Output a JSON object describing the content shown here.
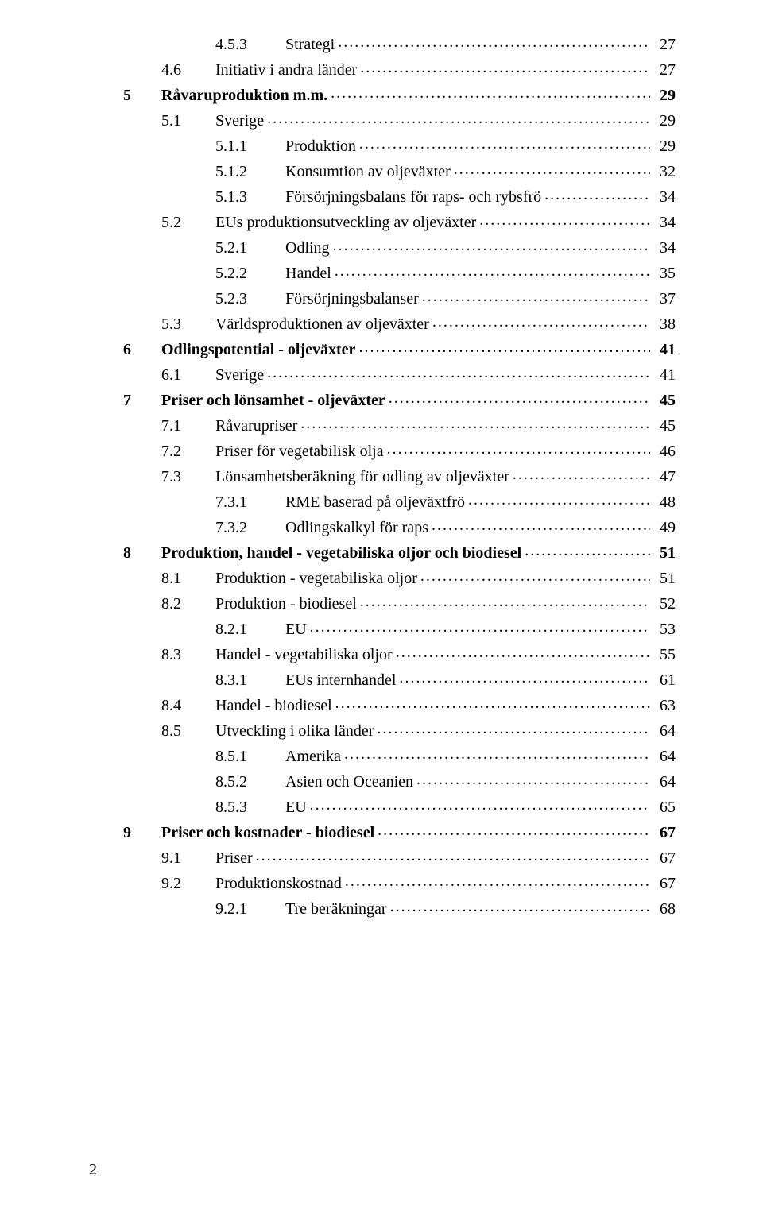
{
  "colors": {
    "background": "#ffffff",
    "text": "#000000"
  },
  "typography": {
    "font_family": "Times New Roman",
    "line_fontsize_pt": 15,
    "bold_levels": [
      "chapter"
    ]
  },
  "footer_page_number": "2",
  "toc": [
    {
      "level": 3,
      "bold": false,
      "num": "4.5.3",
      "title": "Strategi",
      "page": "27"
    },
    {
      "level": 2,
      "bold": false,
      "num": "4.6",
      "title": "Initiativ i andra länder",
      "page": "27"
    },
    {
      "level": 1,
      "bold": true,
      "num": "5",
      "title": "Råvaruproduktion m.m.",
      "page": "29"
    },
    {
      "level": 2,
      "bold": false,
      "num": "5.1",
      "title": "Sverige",
      "page": "29"
    },
    {
      "level": 3,
      "bold": false,
      "num": "5.1.1",
      "title": "Produktion",
      "page": "29"
    },
    {
      "level": 3,
      "bold": false,
      "num": "5.1.2",
      "title": "Konsumtion av oljeväxter",
      "page": "32"
    },
    {
      "level": 3,
      "bold": false,
      "num": "5.1.3",
      "title": "Försörjningsbalans för raps- och rybsfrö",
      "page": "34"
    },
    {
      "level": 2,
      "bold": false,
      "num": "5.2",
      "title": "EUs produktionsutveckling av oljeväxter",
      "page": "34"
    },
    {
      "level": 3,
      "bold": false,
      "num": "5.2.1",
      "title": "Odling",
      "page": "34"
    },
    {
      "level": 3,
      "bold": false,
      "num": "5.2.2",
      "title": "Handel",
      "page": "35"
    },
    {
      "level": 3,
      "bold": false,
      "num": "5.2.3",
      "title": "Försörjningsbalanser",
      "page": "37"
    },
    {
      "level": 2,
      "bold": false,
      "num": "5.3",
      "title": "Världsproduktionen av oljeväxter",
      "page": "38"
    },
    {
      "level": 1,
      "bold": true,
      "num": "6",
      "title": "Odlingspotential - oljeväxter",
      "page": "41"
    },
    {
      "level": 2,
      "bold": false,
      "num": "6.1",
      "title": "Sverige",
      "page": "41"
    },
    {
      "level": 1,
      "bold": true,
      "num": "7",
      "title": "Priser och lönsamhet - oljeväxter",
      "page": "45"
    },
    {
      "level": 2,
      "bold": false,
      "num": "7.1",
      "title": "Råvarupriser",
      "page": "45"
    },
    {
      "level": 2,
      "bold": false,
      "num": "7.2",
      "title": "Priser för vegetabilisk olja",
      "page": "46"
    },
    {
      "level": 2,
      "bold": false,
      "num": "7.3",
      "title": "Lönsamhetsberäkning för odling av oljeväxter",
      "page": "47"
    },
    {
      "level": 3,
      "bold": false,
      "num": "7.3.1",
      "title": "RME baserad på oljeväxtfrö",
      "page": "48"
    },
    {
      "level": 3,
      "bold": false,
      "num": "7.3.2",
      "title": "Odlingskalkyl för raps",
      "page": "49"
    },
    {
      "level": 1,
      "bold": true,
      "num": "8",
      "title": "Produktion, handel - vegetabiliska oljor och biodiesel",
      "page": "51"
    },
    {
      "level": 2,
      "bold": false,
      "num": "8.1",
      "title": "Produktion - vegetabiliska oljor",
      "page": "51"
    },
    {
      "level": 2,
      "bold": false,
      "num": "8.2",
      "title": "Produktion - biodiesel",
      "page": "52"
    },
    {
      "level": 3,
      "bold": false,
      "num": "8.2.1",
      "title": "EU",
      "page": "53"
    },
    {
      "level": 2,
      "bold": false,
      "num": "8.3",
      "title": "Handel - vegetabiliska oljor",
      "page": "55"
    },
    {
      "level": 3,
      "bold": false,
      "num": "8.3.1",
      "title": "EUs internhandel",
      "page": "61"
    },
    {
      "level": 2,
      "bold": false,
      "num": "8.4",
      "title": "Handel - biodiesel",
      "page": "63"
    },
    {
      "level": 2,
      "bold": false,
      "num": "8.5",
      "title": "Utveckling i olika länder",
      "page": "64"
    },
    {
      "level": 3,
      "bold": false,
      "num": "8.5.1",
      "title": "Amerika",
      "page": "64"
    },
    {
      "level": 3,
      "bold": false,
      "num": "8.5.2",
      "title": "Asien och Oceanien",
      "page": "64"
    },
    {
      "level": 3,
      "bold": false,
      "num": "8.5.3",
      "title": "EU",
      "page": "65"
    },
    {
      "level": 1,
      "bold": true,
      "num": "9",
      "title": "Priser och kostnader - biodiesel",
      "page": "67"
    },
    {
      "level": 2,
      "bold": false,
      "num": "9.1",
      "title": "Priser",
      "page": "67"
    },
    {
      "level": 2,
      "bold": false,
      "num": "9.2",
      "title": "Produktionskostnad",
      "page": "67"
    },
    {
      "level": 3,
      "bold": false,
      "num": "9.2.1",
      "title": "Tre beräkningar",
      "page": "68"
    }
  ]
}
